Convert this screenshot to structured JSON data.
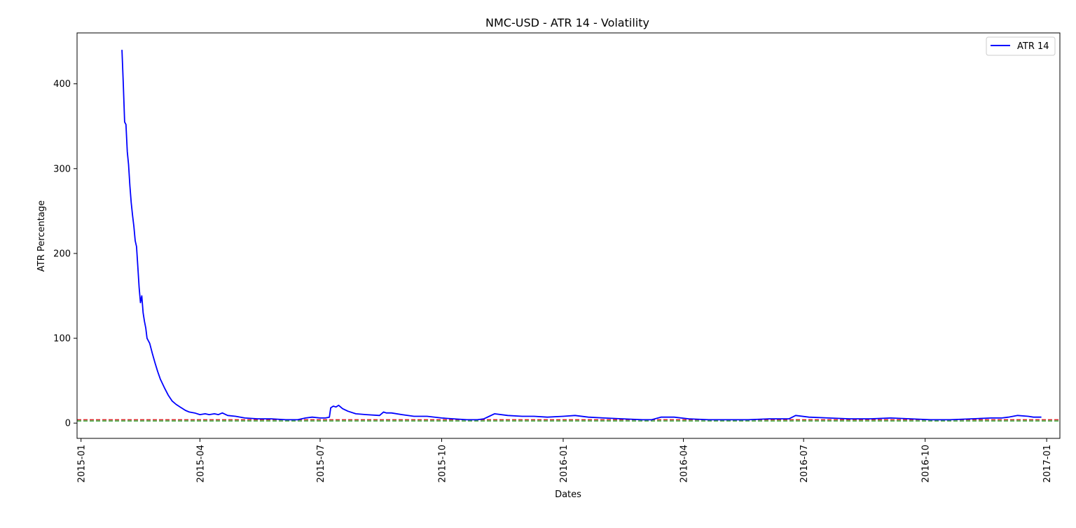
{
  "chart_data": {
    "type": "line",
    "title": "NMC-USD - ATR 14 - Volatility",
    "xlabel": "Dates",
    "ylabel": "ATR Percentage",
    "xlim": [
      "2014-12-29",
      "2017-01-11"
    ],
    "ylim": [
      -18,
      460
    ],
    "x_ticks": [
      "2015-01",
      "2015-04",
      "2015-07",
      "2015-10",
      "2016-01",
      "2016-04",
      "2016-07",
      "2016-10",
      "2017-01"
    ],
    "y_ticks": [
      0,
      100,
      200,
      300,
      400
    ],
    "grid": false,
    "legend": {
      "position": "top-right"
    },
    "series": [
      {
        "name": "ATR 14",
        "color": "#0000ff",
        "x": [
          "2015-02-01",
          "2015-02-02",
          "2015-02-03",
          "2015-02-04",
          "2015-02-05",
          "2015-02-06",
          "2015-02-07",
          "2015-02-08",
          "2015-02-09",
          "2015-02-10",
          "2015-02-11",
          "2015-02-12",
          "2015-02-13",
          "2015-02-14",
          "2015-02-15",
          "2015-02-16",
          "2015-02-17",
          "2015-02-18",
          "2015-02-19",
          "2015-02-20",
          "2015-02-22",
          "2015-02-24",
          "2015-02-26",
          "2015-02-28",
          "2015-03-02",
          "2015-03-05",
          "2015-03-08",
          "2015-03-11",
          "2015-03-14",
          "2015-03-17",
          "2015-03-19",
          "2015-03-21",
          "2015-03-24",
          "2015-03-28",
          "2015-04-01",
          "2015-04-05",
          "2015-04-08",
          "2015-04-12",
          "2015-04-15",
          "2015-04-18",
          "2015-04-22",
          "2015-04-28",
          "2015-05-05",
          "2015-05-15",
          "2015-05-25",
          "2015-06-05",
          "2015-06-14",
          "2015-06-20",
          "2015-06-25",
          "2015-07-01",
          "2015-07-05",
          "2015-07-08",
          "2015-07-09",
          "2015-07-11",
          "2015-07-13",
          "2015-07-15",
          "2015-07-18",
          "2015-07-22",
          "2015-07-28",
          "2015-08-05",
          "2015-08-15",
          "2015-08-18",
          "2015-08-20",
          "2015-08-24",
          "2015-09-01",
          "2015-09-10",
          "2015-09-20",
          "2015-10-01",
          "2015-10-10",
          "2015-10-20",
          "2015-10-28",
          "2015-11-02",
          "2015-11-06",
          "2015-11-10",
          "2015-11-20",
          "2015-12-01",
          "2015-12-10",
          "2015-12-20",
          "2016-01-01",
          "2016-01-10",
          "2016-01-20",
          "2016-02-01",
          "2016-02-15",
          "2016-03-01",
          "2016-03-08",
          "2016-03-15",
          "2016-03-25",
          "2016-04-05",
          "2016-04-20",
          "2016-05-05",
          "2016-05-20",
          "2016-06-05",
          "2016-06-15",
          "2016-06-20",
          "2016-06-25",
          "2016-07-05",
          "2016-07-20",
          "2016-08-05",
          "2016-08-20",
          "2016-09-05",
          "2016-09-20",
          "2016-10-05",
          "2016-10-20",
          "2016-11-05",
          "2016-11-20",
          "2016-11-28",
          "2016-12-03",
          "2016-12-10",
          "2016-12-18",
          "2016-12-22",
          "2016-12-28"
        ],
        "y": [
          440,
          400,
          355,
          352,
          320,
          305,
          280,
          260,
          245,
          232,
          215,
          208,
          185,
          160,
          142,
          150,
          130,
          120,
          112,
          100,
          94,
          82,
          71,
          61,
          52,
          42,
          33,
          26,
          22,
          19,
          17,
          15,
          13,
          12,
          10,
          11,
          10,
          11,
          10,
          12,
          9,
          8,
          6,
          5,
          5,
          4,
          4,
          6,
          7,
          6,
          6,
          7,
          18,
          20,
          19,
          21,
          17,
          14,
          11,
          10,
          9,
          13,
          12,
          12,
          10,
          8,
          8,
          6,
          5,
          4,
          4,
          5,
          8,
          11,
          9,
          8,
          8,
          7,
          8,
          9,
          7,
          6,
          5,
          4,
          4,
          7,
          7,
          5,
          4,
          4,
          4,
          5,
          5,
          5,
          9,
          7,
          6,
          5,
          5,
          6,
          5,
          4,
          4,
          5,
          6,
          6,
          7,
          9,
          8,
          7,
          7
        ]
      }
    ],
    "hlines": [
      {
        "y": 4.0,
        "color": "#d62728",
        "style": "dashed"
      },
      {
        "y": 2.5,
        "color": "#2ca02c",
        "style": "dashed"
      }
    ]
  }
}
